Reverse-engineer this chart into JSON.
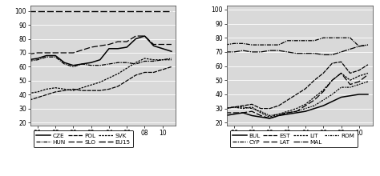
{
  "years": [
    1995,
    1996,
    1997,
    1998,
    1999,
    2000,
    2001,
    2002,
    2003,
    2004,
    2005,
    2006,
    2007,
    2008,
    2009,
    2010,
    2011
  ],
  "left_series": {
    "EU15": [
      100,
      100,
      100,
      100,
      100,
      100,
      100,
      100,
      100,
      100,
      100,
      100,
      100,
      100,
      100,
      100,
      100
    ],
    "CZE": [
      65,
      66,
      68,
      68,
      63,
      61,
      62,
      63,
      65,
      73,
      73,
      74,
      80,
      82,
      75,
      73,
      71
    ],
    "HUN": [
      64,
      65,
      67,
      67,
      62,
      60,
      62,
      61,
      61,
      62,
      63,
      63,
      62,
      64,
      64,
      65,
      66
    ],
    "SLO": [
      69,
      70,
      70,
      70,
      70,
      70,
      72,
      74,
      75,
      76,
      78,
      78,
      82,
      82,
      76,
      76,
      76
    ],
    "POL": [
      36,
      38,
      40,
      42,
      43,
      44,
      43,
      43,
      43,
      44,
      46,
      50,
      54,
      56,
      56,
      58,
      60
    ],
    "SVK": [
      41,
      42,
      44,
      45,
      44,
      43,
      45,
      47,
      49,
      52,
      55,
      59,
      63,
      66,
      65,
      65,
      65
    ]
  },
  "right_series": {
    "CYP": [
      75,
      76,
      76,
      75,
      75,
      75,
      75,
      78,
      78,
      78,
      78,
      80,
      80,
      80,
      80,
      74,
      75
    ],
    "MAL": [
      70,
      70,
      71,
      70,
      70,
      71,
      71,
      70,
      69,
      69,
      69,
      68,
      68,
      70,
      72,
      74,
      75
    ],
    "EST": [
      30,
      31,
      32,
      33,
      30,
      30,
      32,
      36,
      40,
      44,
      50,
      55,
      62,
      63,
      55,
      57,
      61
    ],
    "LAT": [
      27,
      27,
      27,
      28,
      25,
      23,
      25,
      27,
      28,
      32,
      36,
      42,
      50,
      55,
      47,
      49,
      54
    ],
    "LIT": [
      30,
      31,
      30,
      31,
      27,
      24,
      26,
      28,
      30,
      33,
      38,
      43,
      50,
      55,
      50,
      53,
      55
    ],
    "BUL": [
      25,
      26,
      27,
      25,
      24,
      23,
      25,
      26,
      27,
      28,
      30,
      32,
      35,
      38,
      39,
      40,
      40
    ],
    "ROM": [
      30,
      31,
      31,
      30,
      28,
      25,
      26,
      27,
      28,
      30,
      32,
      36,
      40,
      45,
      45,
      47,
      49
    ]
  },
  "xtick_labels": [
    "96",
    "98",
    "00",
    "02",
    "04",
    "06",
    "08",
    "10"
  ],
  "xtick_positions": [
    1996,
    1998,
    2000,
    2002,
    2004,
    2006,
    2008,
    2010
  ],
  "yticks": [
    20,
    30,
    40,
    50,
    60,
    70,
    80,
    90,
    100
  ],
  "ylim_left": [
    18,
    104
  ],
  "ylim_right": [
    18,
    103
  ],
  "bg_color": "#d9d9d9"
}
